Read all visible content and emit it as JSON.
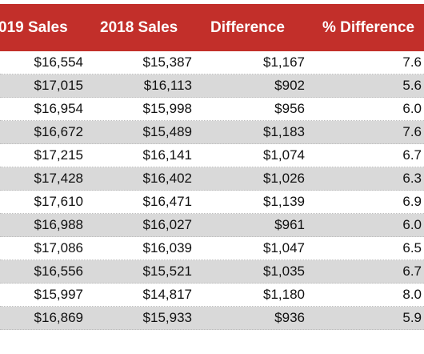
{
  "headers": {
    "sales_2019": "019 Sales",
    "sales_2018": "2018 Sales",
    "difference": "Difference",
    "pct_difference": "% Difference"
  },
  "rows": [
    {
      "sales_2019": "$16,554",
      "sales_2018": "$15,387",
      "difference": "$1,167",
      "pct_difference": "7.6"
    },
    {
      "sales_2019": "$17,015",
      "sales_2018": "$16,113",
      "difference": "$902",
      "pct_difference": "5.6"
    },
    {
      "sales_2019": "$16,954",
      "sales_2018": "$15,998",
      "difference": "$956",
      "pct_difference": "6.0"
    },
    {
      "sales_2019": "$16,672",
      "sales_2018": "$15,489",
      "difference": "$1,183",
      "pct_difference": "7.6"
    },
    {
      "sales_2019": "$17,215",
      "sales_2018": "$16,141",
      "difference": "$1,074",
      "pct_difference": "6.7"
    },
    {
      "sales_2019": "$17,428",
      "sales_2018": "$16,402",
      "difference": "$1,026",
      "pct_difference": "6.3"
    },
    {
      "sales_2019": "$17,610",
      "sales_2018": "$16,471",
      "difference": "$1,139",
      "pct_difference": "6.9"
    },
    {
      "sales_2019": "$16,988",
      "sales_2018": "$16,027",
      "difference": "$961",
      "pct_difference": "6.0"
    },
    {
      "sales_2019": "$17,086",
      "sales_2018": "$16,039",
      "difference": "$1,047",
      "pct_difference": "6.5"
    },
    {
      "sales_2019": "$16,556",
      "sales_2018": "$15,521",
      "difference": "$1,035",
      "pct_difference": "6.7"
    },
    {
      "sales_2019": "$15,997",
      "sales_2018": "$14,817",
      "difference": "$1,180",
      "pct_difference": "8.0"
    },
    {
      "sales_2019": "$16,869",
      "sales_2018": "$15,933",
      "difference": "$936",
      "pct_difference": "5.9"
    }
  ],
  "colors": {
    "header_background": "#c22f2a",
    "header_text": "#ffffff",
    "alternate_row": "#d9d9d9",
    "row_text": "#111111"
  }
}
